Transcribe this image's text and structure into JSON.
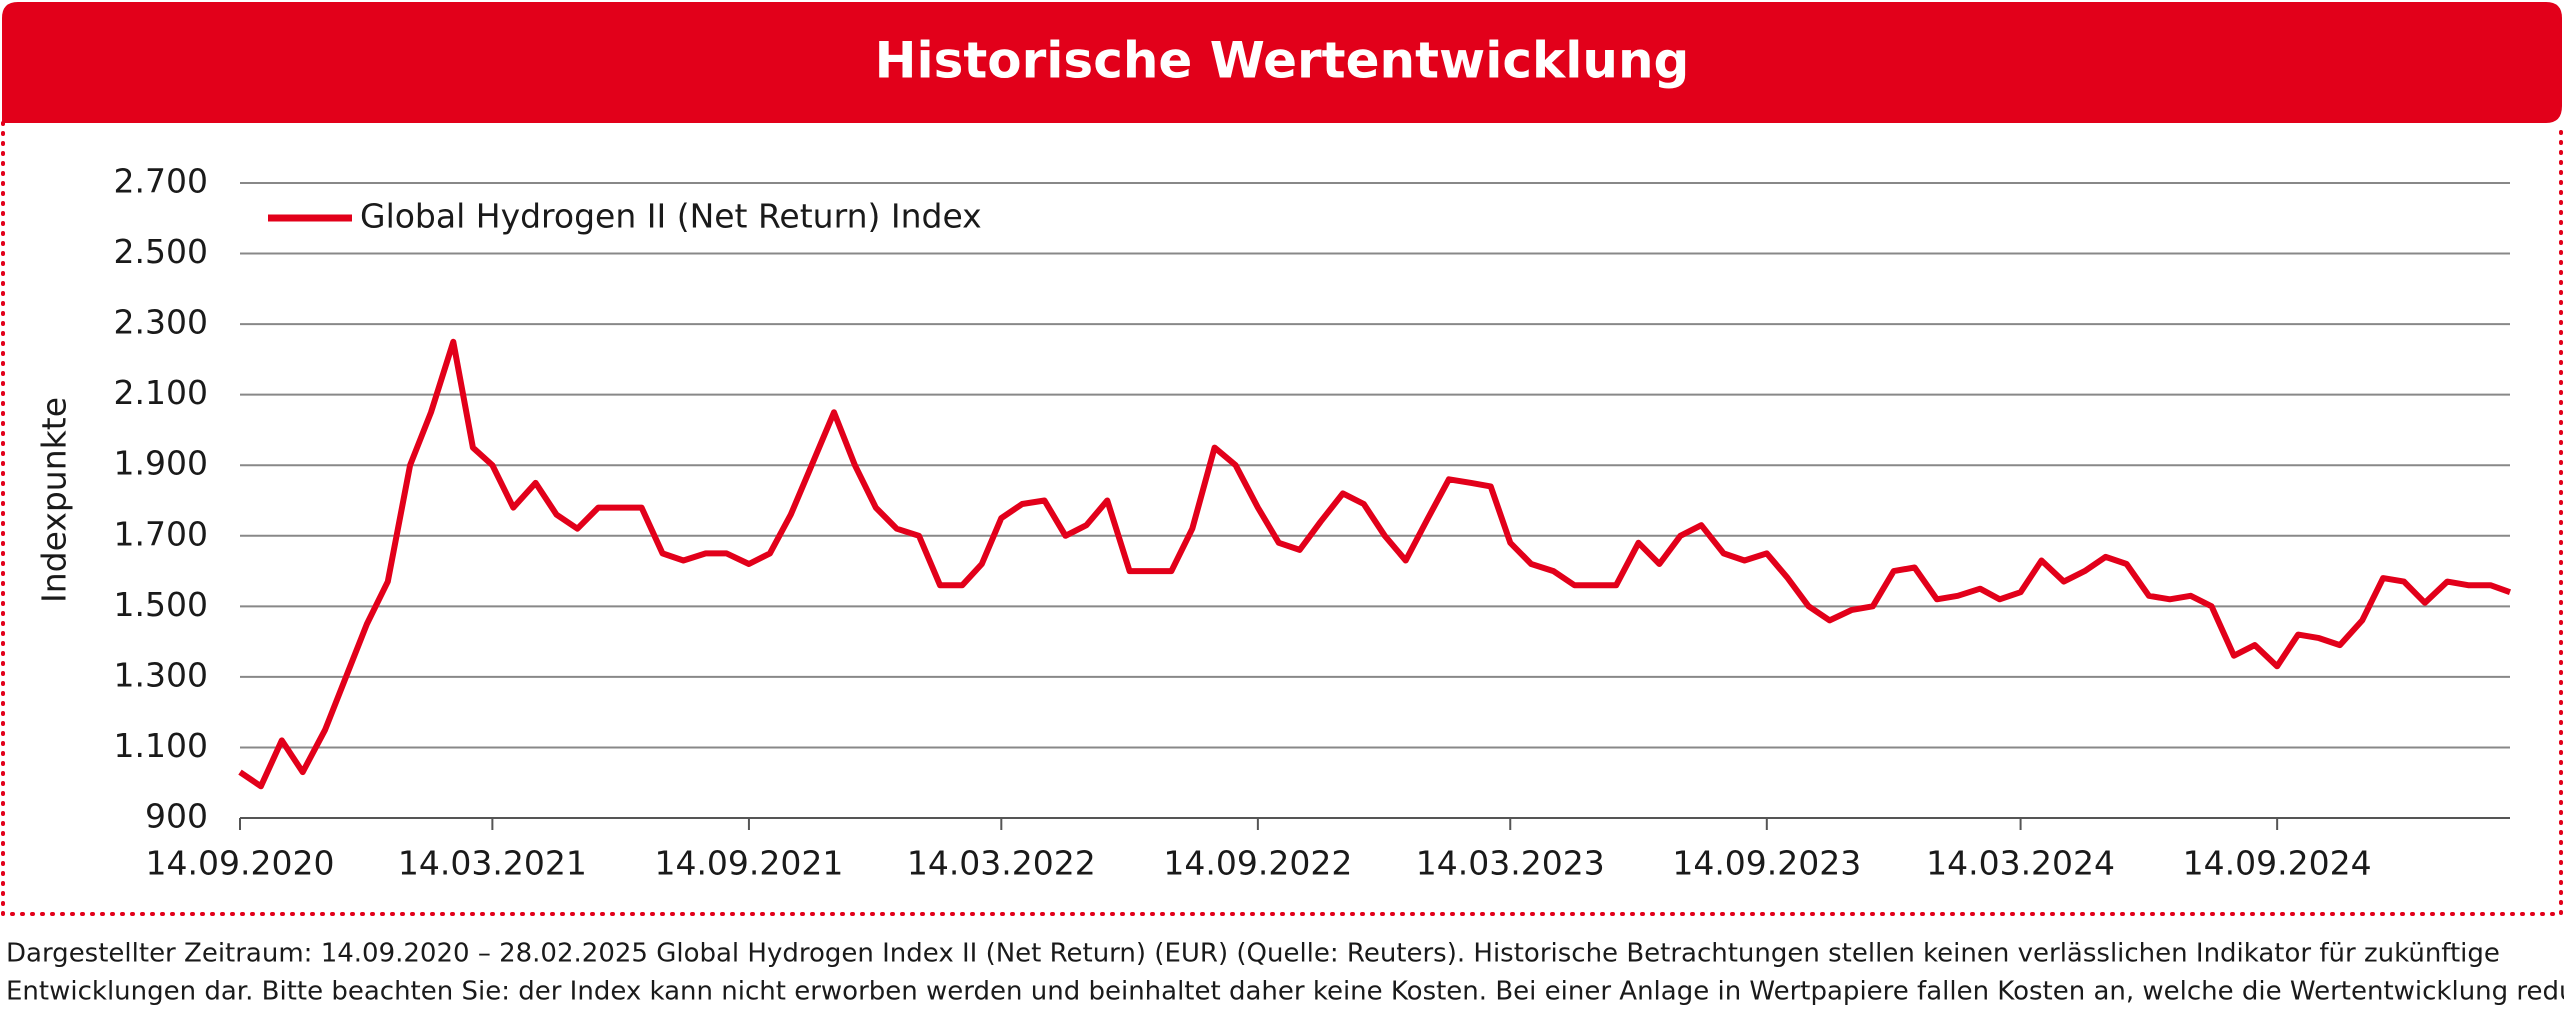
{
  "chart_data": {
    "type": "line",
    "title": "Historische Wertentwicklung",
    "y_label": "Indexpunkte",
    "x": [
      "2020-09-14",
      "2020-09-29",
      "2020-10-14",
      "2020-10-29",
      "2020-11-14",
      "2020-11-29",
      "2020-12-14",
      "2020-12-29",
      "2021-01-14",
      "2021-01-29",
      "2021-02-14",
      "2021-02-28",
      "2021-03-14",
      "2021-03-29",
      "2021-04-14",
      "2021-04-29",
      "2021-05-14",
      "2021-05-29",
      "2021-06-14",
      "2021-06-29",
      "2021-07-14",
      "2021-07-29",
      "2021-08-14",
      "2021-08-29",
      "2021-09-14",
      "2021-09-29",
      "2021-10-14",
      "2021-10-29",
      "2021-11-14",
      "2021-11-29",
      "2021-12-14",
      "2021-12-29",
      "2022-01-14",
      "2022-01-29",
      "2022-02-14",
      "2022-02-28",
      "2022-03-14",
      "2022-03-29",
      "2022-04-14",
      "2022-04-29",
      "2022-05-14",
      "2022-05-29",
      "2022-06-14",
      "2022-06-29",
      "2022-07-14",
      "2022-07-29",
      "2022-08-14",
      "2022-08-29",
      "2022-09-14",
      "2022-09-29",
      "2022-10-14",
      "2022-10-29",
      "2022-11-14",
      "2022-11-29",
      "2022-12-14",
      "2022-12-29",
      "2023-01-14",
      "2023-01-29",
      "2023-02-14",
      "2023-02-28",
      "2023-03-14",
      "2023-03-29",
      "2023-04-14",
      "2023-04-29",
      "2023-05-14",
      "2023-05-29",
      "2023-06-14",
      "2023-06-29",
      "2023-07-14",
      "2023-07-29",
      "2023-08-14",
      "2023-08-29",
      "2023-09-14",
      "2023-09-29",
      "2023-10-14",
      "2023-10-29",
      "2023-11-14",
      "2023-11-29",
      "2023-12-14",
      "2023-12-29",
      "2024-01-14",
      "2024-01-29",
      "2024-02-14",
      "2024-02-28",
      "2024-03-14",
      "2024-03-29",
      "2024-04-14",
      "2024-04-29",
      "2024-05-14",
      "2024-05-29",
      "2024-06-14",
      "2024-06-29",
      "2024-07-14",
      "2024-07-29",
      "2024-08-14",
      "2024-08-29",
      "2024-09-14",
      "2024-09-29",
      "2024-10-14",
      "2024-10-29",
      "2024-11-14",
      "2024-11-29",
      "2024-12-14",
      "2024-12-29",
      "2025-01-14",
      "2025-01-29",
      "2025-02-14",
      "2025-02-28"
    ],
    "series": [
      {
        "name": "Global Hydrogen II (Net Return) Index",
        "color": "#e2001a",
        "values": [
          1030,
          990,
          1120,
          1030,
          1150,
          1300,
          1450,
          1570,
          1900,
          2050,
          2250,
          1950,
          1900,
          1780,
          1850,
          1760,
          1720,
          1780,
          1780,
          1780,
          1650,
          1630,
          1650,
          1650,
          1620,
          1650,
          1760,
          1900,
          2050,
          1900,
          1780,
          1720,
          1700,
          1560,
          1560,
          1620,
          1750,
          1790,
          1800,
          1700,
          1730,
          1800,
          1600,
          1600,
          1600,
          1720,
          1950,
          1900,
          1780,
          1680,
          1660,
          1740,
          1820,
          1790,
          1700,
          1630,
          1750,
          1860,
          1850,
          1840,
          1680,
          1620,
          1600,
          1560,
          1560,
          1560,
          1680,
          1620,
          1700,
          1730,
          1650,
          1630,
          1650,
          1580,
          1500,
          1460,
          1490,
          1500,
          1600,
          1610,
          1520,
          1530,
          1550,
          1520,
          1540,
          1630,
          1570,
          1600,
          1640,
          1620,
          1530,
          1520,
          1530,
          1500,
          1360,
          1390,
          1330,
          1420,
          1410,
          1390,
          1460,
          1580,
          1570,
          1510,
          1570,
          1560,
          1560,
          1540
        ]
      }
    ],
    "xlim": [
      "2020-09-14",
      "2025-02-28"
    ],
    "xticks": [
      {
        "value": "2020-09-14",
        "label": "14.09.2020"
      },
      {
        "value": "2021-03-14",
        "label": "14.03.2021"
      },
      {
        "value": "2021-09-14",
        "label": "14.09.2021"
      },
      {
        "value": "2022-03-14",
        "label": "14.03.2022"
      },
      {
        "value": "2022-09-14",
        "label": "14.09.2022"
      },
      {
        "value": "2023-03-14",
        "label": "14.03.2023"
      },
      {
        "value": "2023-09-14",
        "label": "14.09.2023"
      },
      {
        "value": "2024-03-14",
        "label": "14.03.2024"
      },
      {
        "value": "2024-09-14",
        "label": "14.09.2024"
      }
    ],
    "ylim": [
      900,
      2700
    ],
    "yticks": [
      900,
      {
        "value": 1100,
        "label": "1.100"
      },
      {
        "value": 1300,
        "label": "1.300"
      },
      {
        "value": 1500,
        "label": "1.500"
      },
      {
        "value": 1700,
        "label": "1.700"
      },
      {
        "value": 1900,
        "label": "1.900"
      },
      {
        "value": 2100,
        "label": "2.100"
      },
      {
        "value": 2300,
        "label": "2.300"
      },
      {
        "value": 2500,
        "label": "2.500"
      },
      {
        "value": 2700,
        "label": "2.700"
      }
    ],
    "grid": true,
    "legend": "top-left",
    "footer": [
      "Dargestellter Zeitraum: 14.09.2020 – 28.02.2025 Global Hydrogen Index II (Net Return) (EUR) (Quelle: Reuters). Historische Betrachtungen stellen keinen verlässlichen Indikator für zukünftige",
      "Entwicklungen dar. Bitte beachten Sie: der Index kann nicht erworben werden und beinhaltet daher keine Kosten. Bei einer Anlage in Wertpapiere fallen Kosten an, welche die Wertentwicklung reduzieren."
    ]
  }
}
